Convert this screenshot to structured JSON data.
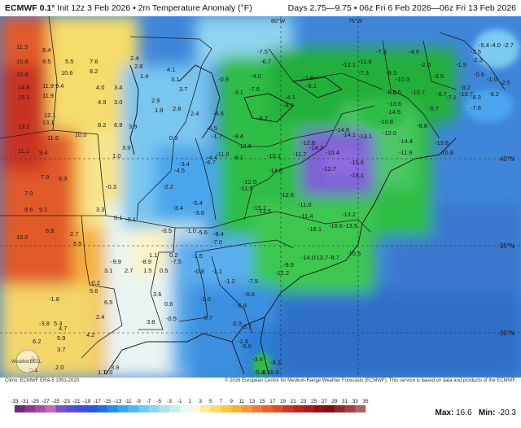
{
  "header": {
    "model": "ECMWF 0.1°",
    "init": " Init 12z 3 Feb 2026",
    "product": " • 2m Temperature Anomaly (°F)",
    "valid": "Days 2.75—9.75 • 06z Fri 6 Feb 2026—06z Fri 13 Feb 2026"
  },
  "grid": {
    "lat_labels": [
      "40°N",
      "35°N",
      "30°N"
    ],
    "lon_labels": [
      "80°W",
      "75°W"
    ]
  },
  "values": [
    {
      "t": "11.3"
    },
    {
      "t": "8.4"
    },
    {
      "t": "5.5"
    },
    {
      "t": "10.8"
    },
    {
      "t": "9.5"
    },
    {
      "t": "10.8"
    },
    {
      "t": "10.6"
    },
    {
      "t": "8.2"
    },
    {
      "t": "7.6"
    },
    {
      "t": "2.4"
    },
    {
      "t": "2.8"
    },
    {
      "t": "1.4"
    },
    {
      "t": "4.1"
    },
    {
      "t": "3.1"
    },
    {
      "t": "3.7"
    },
    {
      "t": "4.0"
    },
    {
      "t": "3.4"
    },
    {
      "t": "14.8"
    },
    {
      "t": "11.9"
    },
    {
      "t": "9.4"
    },
    {
      "t": "15.1"
    },
    {
      "t": "11.9"
    },
    {
      "t": "4.9"
    },
    {
      "t": "3.0"
    },
    {
      "t": "1.9"
    },
    {
      "t": "2.8"
    },
    {
      "t": "12.1"
    },
    {
      "t": "13.2"
    },
    {
      "t": "13.1"
    },
    {
      "t": "8.2"
    },
    {
      "t": "6.9"
    },
    {
      "t": "3.9"
    },
    {
      "t": "10.0"
    },
    {
      "t": "11.6"
    },
    {
      "t": "3.9"
    },
    {
      "t": "1.0"
    },
    {
      "t": "11.1"
    },
    {
      "t": "9.4"
    },
    {
      "t": "7.9"
    },
    {
      "t": "6.3"
    },
    {
      "t": "7.0"
    },
    {
      "t": "9.6"
    },
    {
      "t": "9.1"
    },
    {
      "t": "3.3"
    },
    {
      "t": "-0.3"
    },
    {
      "t": "-2.2"
    },
    {
      "t": "-3.4"
    },
    {
      "t": "-4.5"
    },
    {
      "t": "-3.4"
    },
    {
      "t": "-3.8"
    },
    {
      "t": "10.0"
    },
    {
      "t": "6.8"
    },
    {
      "t": "2.7"
    },
    {
      "t": "5.5"
    },
    {
      "t": "0.1"
    },
    {
      "t": "-0.5"
    },
    {
      "t": "-1.0"
    },
    {
      "t": "-0.1"
    },
    {
      "t": "1.1"
    },
    {
      "t": "0.2"
    },
    {
      "t": "-1.5"
    },
    {
      "t": "3.1"
    },
    {
      "t": "2.7"
    },
    {
      "t": "1.5"
    },
    {
      "t": "0.5"
    },
    {
      "t": "-0.2"
    },
    {
      "t": "5.6"
    },
    {
      "t": "3.6"
    },
    {
      "t": "0.6"
    },
    {
      "t": "-0.5"
    },
    {
      "t": "-1.0"
    },
    {
      "t": "-0.8"
    },
    {
      "t": "-1.1"
    },
    {
      "t": "-1.2"
    },
    {
      "t": "-1.8"
    },
    {
      "t": "6.5"
    },
    {
      "t": "2.4"
    },
    {
      "t": "3.8"
    },
    {
      "t": "-0.7"
    },
    {
      "t": "-2.3"
    },
    {
      "t": "-3.8"
    },
    {
      "t": "5.3"
    },
    {
      "t": "6.2"
    },
    {
      "t": "4.7"
    },
    {
      "t": "5.9"
    },
    {
      "t": "3.7"
    },
    {
      "t": "4.2"
    },
    {
      "t": "3.1"
    },
    {
      "t": "2.0"
    },
    {
      "t": "3.9"
    },
    {
      "t": "0.1"
    },
    {
      "t": "1.1"
    },
    {
      "t": "0.0"
    },
    {
      "t": "2.9"
    },
    {
      "t": "2.4"
    },
    {
      "t": "0.9"
    },
    {
      "t": "-0.9"
    },
    {
      "t": "-3.1"
    },
    {
      "t": "-4.6"
    },
    {
      "t": "-6.5"
    },
    {
      "t": "-1.7"
    },
    {
      "t": "-4.4"
    },
    {
      "t": "-6.7"
    },
    {
      "t": "-5.4"
    },
    {
      "t": "-5.6"
    },
    {
      "t": "-8.4"
    },
    {
      "t": "-7.0"
    },
    {
      "t": "-7.5"
    },
    {
      "t": "-6.8"
    },
    {
      "t": "-6.8"
    },
    {
      "t": "-3.7"
    },
    {
      "t": "-2.8"
    },
    {
      "t": "-5.0"
    },
    {
      "t": "-3.6"
    },
    {
      "t": "-5.3"
    },
    {
      "t": "-5.6"
    },
    {
      "t": "-8.1"
    },
    {
      "t": "-8.3"
    },
    {
      "t": "-7.5"
    },
    {
      "t": "-6.7"
    },
    {
      "t": "-4.0"
    },
    {
      "t": "-7.6"
    },
    {
      "t": "-7.6"
    },
    {
      "t": "-6.1"
    },
    {
      "t": "-4.1"
    },
    {
      "t": "-8.9"
    },
    {
      "t": "-9.2"
    },
    {
      "t": "-9.4"
    },
    {
      "t": "-12.6"
    },
    {
      "t": "-11.0"
    },
    {
      "t": "-9.1"
    },
    {
      "t": "-10.1"
    },
    {
      "t": "-11.7"
    },
    {
      "t": "-12.8"
    },
    {
      "t": "-14.3"
    },
    {
      "t": "-14.8"
    },
    {
      "t": "-14.1"
    },
    {
      "t": "-13.1"
    },
    {
      "t": "-13.6"
    },
    {
      "t": "-14.5"
    },
    {
      "t": "-14.8"
    },
    {
      "t": "-12.0"
    },
    {
      "t": "-11.9"
    },
    {
      "t": "-15.7"
    },
    {
      "t": "-13.5"
    },
    {
      "t": "-12.6"
    },
    {
      "t": "-11.0"
    },
    {
      "t": "-11.4"
    },
    {
      "t": "-12.7"
    },
    {
      "t": "-15.4"
    },
    {
      "t": "-15.6"
    },
    {
      "t": "-18.1"
    },
    {
      "t": "-16.1"
    },
    {
      "t": "-16.6"
    },
    {
      "t": "-13.9"
    },
    {
      "t": "-13.2"
    },
    {
      "t": "-14.0"
    },
    {
      "t": "-13.7"
    },
    {
      "t": "-12.2"
    },
    {
      "t": "-9.5"
    },
    {
      "t": "-10.5"
    },
    {
      "t": "-8.7"
    },
    {
      "t": "-7.3"
    },
    {
      "t": "-9.3"
    },
    {
      "t": "-10.3"
    },
    {
      "t": "-6.5"
    },
    {
      "t": "-8.5"
    },
    {
      "t": "-10.8"
    },
    {
      "t": "-9.8"
    },
    {
      "t": "-12.0"
    },
    {
      "t": "-14.4"
    },
    {
      "t": "-11.9"
    },
    {
      "t": "-16.8"
    },
    {
      "t": "-13.8"
    },
    {
      "t": "-10.7"
    },
    {
      "t": "-7.1"
    },
    {
      "t": "-8.3"
    },
    {
      "t": "-7.8"
    },
    {
      "t": "-5.7"
    },
    {
      "t": "-6.7"
    },
    {
      "t": "-10.7"
    },
    {
      "t": "-9.2"
    },
    {
      "t": "-5.4"
    },
    {
      "t": "-4.0"
    },
    {
      "t": "-2.7"
    },
    {
      "t": "-2.5"
    },
    {
      "t": "-2.3"
    },
    {
      "t": "-1.9"
    },
    {
      "t": "-0.6"
    },
    {
      "t": "-1.0"
    },
    {
      "t": "-2.5"
    },
    {
      "t": "-3.2"
    },
    {
      "t": "-2.0"
    },
    {
      "t": "-3.5"
    },
    {
      "t": "-4.9"
    },
    {
      "t": "-7.8"
    },
    {
      "t": "-11.6"
    },
    {
      "t": "-12.1"
    },
    {
      "t": "-9.9"
    },
    {
      "t": "-8.9"
    },
    {
      "t": "-7.5"
    }
  ],
  "colorbar": {
    "ticks": [
      "-33",
      "-31",
      "-29",
      "-27",
      "-25",
      "-23",
      "-21",
      "-19",
      "-17",
      "-15",
      "-13",
      "-11",
      "-9",
      "-7",
      "-5",
      "-3",
      "-1",
      "1",
      "3",
      "5",
      "7",
      "9",
      "11",
      "13",
      "15",
      "17",
      "19",
      "21",
      "23",
      "25",
      "27",
      "29",
      "31",
      "33",
      "35"
    ],
    "colors": [
      "#6b2d6b",
      "#8b3a8b",
      "#a64ea6",
      "#c06ac0",
      "#7a4fc8",
      "#5a4fd0",
      "#3d4fd8",
      "#2a56d6",
      "#1f6fe0",
      "#2a8ae8",
      "#3aa3ee",
      "#52b8f0",
      "#6dcaf2",
      "#8ad8ee",
      "#a8e3e6",
      "#c8eee8",
      "#e8f8f2",
      "#fbf7d8",
      "#f8ec9a",
      "#f6dc6a",
      "#f4c84a",
      "#f2b23a",
      "#f0983a",
      "#ec7c34",
      "#e5622e",
      "#dd4a2a",
      "#cf3426",
      "#bc2622",
      "#a61c1e",
      "#8f141a",
      "#7a1016",
      "#8a2a2a",
      "#a04040",
      "#b06060"
    ]
  },
  "footer": {
    "climo": "Climo: ECMWF ERA-5 1991-2020",
    "copyright": "© 2026 European Centre for Medium-Range Weather Forecasts (ECMWF). This service is based on data and products of the ECMWF.",
    "max_label": "Max:",
    "max_value": "16.6",
    "min_label": "Min:",
    "min_value": "-20.3",
    "logo": "WeatherBELL"
  }
}
